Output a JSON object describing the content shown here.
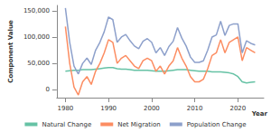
{
  "chart_data": {
    "type": "line",
    "x_label": "Year",
    "y_label": "Component Value",
    "x": [
      1980,
      1981,
      1982,
      1983,
      1984,
      1985,
      1986,
      1987,
      1988,
      1989,
      1990,
      1991,
      1992,
      1993,
      1994,
      1995,
      1996,
      1997,
      1998,
      1999,
      2000,
      2001,
      2002,
      2003,
      2004,
      2005,
      2006,
      2007,
      2008,
      2009,
      2010,
      2011,
      2012,
      2013,
      2014,
      2015,
      2016,
      2017,
      2018,
      2019,
      2020,
      2021,
      2022,
      2023,
      2024
    ],
    "series": [
      {
        "name": "Natural Change",
        "color": "#66c2a5",
        "values": [
          35000,
          36000,
          37000,
          37000,
          38000,
          38000,
          38000,
          39000,
          40000,
          41000,
          42000,
          42000,
          40000,
          39000,
          39000,
          38000,
          37000,
          37000,
          37000,
          37000,
          36000,
          35000,
          35000,
          35000,
          36000,
          37000,
          38000,
          38000,
          38000,
          37000,
          36000,
          35000,
          35000,
          35000,
          34000,
          34000,
          34000,
          33000,
          32000,
          30000,
          25000,
          15000,
          13000,
          14000,
          15000
        ]
      },
      {
        "name": "Net Migration",
        "color": "#fc8d62",
        "values": [
          120000,
          50000,
          5000,
          -10000,
          15000,
          25000,
          10000,
          35000,
          50000,
          70000,
          95000,
          90000,
          50000,
          60000,
          65000,
          55000,
          45000,
          40000,
          55000,
          60000,
          55000,
          35000,
          45000,
          30000,
          45000,
          55000,
          80000,
          60000,
          45000,
          25000,
          15000,
          15000,
          20000,
          40000,
          65000,
          70000,
          95000,
          70000,
          90000,
          95000,
          100000,
          55000,
          80000,
          75000,
          70000
        ]
      },
      {
        "name": "Population Change",
        "color": "#8da0cb",
        "values": [
          155000,
          90000,
          45000,
          30000,
          50000,
          60000,
          48000,
          75000,
          90000,
          110000,
          138000,
          133000,
          90000,
          100000,
          105000,
          93000,
          83000,
          78000,
          92000,
          97000,
          90000,
          70000,
          80000,
          65000,
          82000,
          92000,
          118000,
          98000,
          83000,
          62000,
          52000,
          52000,
          55000,
          75000,
          100000,
          104000,
          130000,
          103000,
          122000,
          125000,
          125000,
          70000,
          93000,
          88000,
          85000
        ]
      }
    ],
    "xlim": [
      1978,
      2026
    ],
    "xticks": [
      1980,
      1990,
      2000,
      2010,
      2020
    ],
    "ylim": [
      -15000,
      160000
    ],
    "yticks": [
      0,
      {
        "value": 50000,
        "label": "50,000"
      },
      {
        "value": 100000,
        "label": "100,000"
      },
      {
        "value": 150000,
        "label": "150,000"
      }
    ],
    "grid": false,
    "legend": "bottom"
  }
}
